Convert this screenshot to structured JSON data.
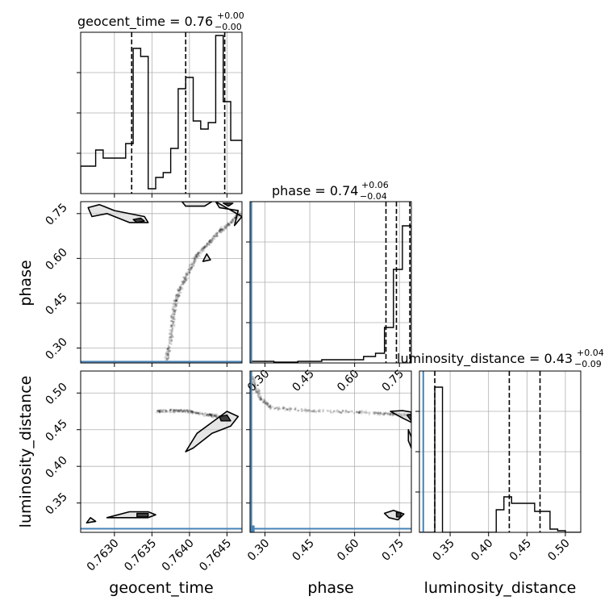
{
  "chart_data": [
    {
      "panel": "geocent_time-hist",
      "type": "histogram",
      "title": "geocent_time = 0.76",
      "title_sup": "+0.00",
      "title_sub": "−0.00",
      "xlim": [
        0.76255,
        0.7647
      ],
      "ylim": [
        0,
        1.0
      ],
      "bin_edges": [
        0.76255,
        0.76265,
        0.76275,
        0.76285,
        0.76295,
        0.76305,
        0.76315,
        0.76325,
        0.76335,
        0.76345,
        0.76355,
        0.76365,
        0.76375,
        0.76385,
        0.76395,
        0.76405,
        0.76415,
        0.76425,
        0.76435,
        0.76445,
        0.76455,
        0.7647
      ],
      "counts": [
        0.17,
        0.17,
        0.27,
        0.22,
        0.22,
        0.22,
        0.31,
        0.9,
        0.85,
        0.03,
        0.1,
        0.13,
        0.28,
        0.65,
        0.72,
        0.45,
        0.4,
        0.44,
        0.98,
        0.57,
        0.33
      ],
      "quantile_lines": [
        0.76323,
        0.76395,
        0.76447
      ],
      "yticks": [
        0.25,
        0.5,
        0.75
      ],
      "grid": true
    },
    {
      "panel": "phase-hist",
      "type": "histogram",
      "title": "phase = 0.74",
      "title_sup": "+0.06",
      "title_sub": "−0.04",
      "xlim": [
        0.25,
        0.79
      ],
      "ylim": [
        0,
        1.0
      ],
      "bin_edges": [
        0.25,
        0.33,
        0.41,
        0.49,
        0.57,
        0.63,
        0.67,
        0.7,
        0.73,
        0.76,
        0.79
      ],
      "counts": [
        0.01,
        0.005,
        0.01,
        0.02,
        0.02,
        0.04,
        0.06,
        0.22,
        0.58,
        0.85
      ],
      "quantile_lines": [
        0.705,
        0.74,
        0.785
      ],
      "truth": 0.2544,
      "xticks": [
        0.3,
        0.45,
        0.6,
        0.75
      ],
      "yticks": [
        0.25,
        0.5,
        0.75
      ],
      "xlabel": "phase",
      "grid": true
    },
    {
      "panel": "luminosity_distance-hist",
      "type": "histogram",
      "title": "luminosity_distance = 0.43",
      "title_sup": "+0.04",
      "title_sub": "−0.09",
      "xlim": [
        0.31,
        0.52
      ],
      "ylim": [
        0,
        1.0
      ],
      "bin_edges": [
        0.31,
        0.32,
        0.33,
        0.34,
        0.35,
        0.36,
        0.37,
        0.38,
        0.39,
        0.4,
        0.41,
        0.42,
        0.43,
        0.44,
        0.45,
        0.46,
        0.47,
        0.48,
        0.49,
        0.5,
        0.52
      ],
      "counts": [
        0.0,
        0.0,
        0.9,
        0.0,
        0.0,
        0.0,
        0.0,
        0.0,
        0.0,
        0.0,
        0.14,
        0.22,
        0.18,
        0.18,
        0.18,
        0.13,
        0.13,
        0.02,
        0.01,
        0.0
      ],
      "quantile_lines": [
        0.33,
        0.427,
        0.467
      ],
      "truth": 0.315,
      "xticks": [
        0.35,
        0.4,
        0.45,
        0.5
      ],
      "yticks": [
        0.25,
        0.5,
        0.75
      ],
      "xlabel": "luminosity_distance",
      "grid": true
    },
    {
      "panel": "geocent_time-phase",
      "type": "scatter",
      "xlim": [
        0.76255,
        0.7647
      ],
      "ylim": [
        0.25,
        0.79
      ],
      "ylabel": "phase",
      "yticks": [
        0.3,
        0.45,
        0.6,
        0.75
      ],
      "truth_y": 0.2544,
      "grid": true,
      "scatter_band": [
        [
          0.7637,
          0.26
        ],
        [
          0.76375,
          0.33
        ],
        [
          0.76378,
          0.4
        ],
        [
          0.76382,
          0.46
        ],
        [
          0.7639,
          0.51
        ],
        [
          0.764,
          0.56
        ],
        [
          0.7641,
          0.61
        ],
        [
          0.76425,
          0.65
        ],
        [
          0.7644,
          0.69
        ],
        [
          0.76455,
          0.72
        ],
        [
          0.76468,
          0.75
        ]
      ],
      "contours": [
        {
          "level": "outer",
          "points": [
            [
              0.76265,
              0.77
            ],
            [
              0.7628,
              0.78
            ],
            [
              0.763,
              0.76
            ],
            [
              0.7634,
              0.74
            ],
            [
              0.76345,
              0.72
            ],
            [
              0.7632,
              0.72
            ],
            [
              0.7629,
              0.75
            ],
            [
              0.7627,
              0.74
            ]
          ]
        },
        {
          "level": "inner",
          "points": [
            [
              0.76325,
              0.73
            ],
            [
              0.76335,
              0.735
            ],
            [
              0.7634,
              0.725
            ],
            [
              0.7633,
              0.72
            ]
          ]
        },
        {
          "level": "outer",
          "points": [
            [
              0.7639,
              0.79
            ],
            [
              0.76395,
              0.775
            ],
            [
              0.7642,
              0.775
            ],
            [
              0.7643,
              0.79
            ]
          ]
        },
        {
          "level": "outer",
          "points": [
            [
              0.76435,
              0.79
            ],
            [
              0.7644,
              0.77
            ],
            [
              0.76465,
              0.76
            ],
            [
              0.7646,
              0.71
            ],
            [
              0.7647,
              0.74
            ]
          ]
        },
        {
          "level": "inner",
          "points": [
            [
              0.76445,
              0.785
            ],
            [
              0.76452,
              0.775
            ],
            [
              0.76458,
              0.785
            ]
          ]
        },
        {
          "level": "outer",
          "points": [
            [
              0.76418,
              0.59
            ],
            [
              0.76423,
              0.615
            ],
            [
              0.76428,
              0.595
            ]
          ]
        }
      ]
    },
    {
      "panel": "geocent_time-luminosity_distance",
      "type": "scatter",
      "xlim": [
        0.76255,
        0.7647
      ],
      "ylim": [
        0.31,
        0.53
      ],
      "xlabel": "geocent_time",
      "ylabel": "luminosity_distance",
      "xticks": [
        0.763,
        0.7635,
        0.764,
        0.7645
      ],
      "yticks": [
        0.35,
        0.4,
        0.45,
        0.5
      ],
      "truth_y": 0.315,
      "grid": true,
      "scatter_band": [
        [
          0.76355,
          0.475
        ],
        [
          0.7638,
          0.476
        ],
        [
          0.764,
          0.475
        ],
        [
          0.76425,
          0.47
        ],
        [
          0.7644,
          0.468
        ]
      ],
      "contours": [
        {
          "level": "outer",
          "points": [
            [
              0.7629,
              0.33
            ],
            [
              0.7632,
              0.338
            ],
            [
              0.76345,
              0.338
            ],
            [
              0.76355,
              0.334
            ],
            [
              0.76345,
              0.33
            ],
            [
              0.7631,
              0.33
            ]
          ]
        },
        {
          "level": "inner",
          "points": [
            [
              0.7633,
              0.336
            ],
            [
              0.76345,
              0.336
            ],
            [
              0.76345,
              0.331
            ],
            [
              0.7633,
              0.331
            ]
          ]
        },
        {
          "level": "outer",
          "points": [
            [
              0.76263,
              0.323
            ],
            [
              0.76268,
              0.33
            ],
            [
              0.76275,
              0.325
            ]
          ]
        },
        {
          "level": "outer",
          "points": [
            [
              0.76395,
              0.42
            ],
            [
              0.7641,
              0.445
            ],
            [
              0.7643,
              0.46
            ],
            [
              0.7645,
              0.475
            ],
            [
              0.76465,
              0.468
            ],
            [
              0.76455,
              0.455
            ],
            [
              0.7643,
              0.445
            ],
            [
              0.76405,
              0.425
            ]
          ]
        },
        {
          "level": "inner",
          "points": [
            [
              0.7644,
              0.468
            ],
            [
              0.7645,
              0.47
            ],
            [
              0.76455,
              0.462
            ],
            [
              0.76442,
              0.462
            ]
          ]
        }
      ]
    },
    {
      "panel": "phase-luminosity_distance",
      "type": "scatter",
      "xlim": [
        0.25,
        0.79
      ],
      "ylim": [
        0.31,
        0.53
      ],
      "xlabel": "phase",
      "xticks": [
        0.3,
        0.45,
        0.6,
        0.75
      ],
      "truth_x": 0.2544,
      "truth_y": 0.315,
      "grid": true,
      "scatter_band": [
        [
          0.26,
          0.52
        ],
        [
          0.28,
          0.495
        ],
        [
          0.32,
          0.48
        ],
        [
          0.45,
          0.476
        ],
        [
          0.6,
          0.474
        ],
        [
          0.7,
          0.472
        ],
        [
          0.78,
          0.47
        ]
      ],
      "contours": [
        {
          "level": "outer",
          "points": [
            [
              0.72,
              0.475
            ],
            [
              0.76,
              0.476
            ],
            [
              0.79,
              0.474
            ],
            [
              0.79,
              0.46
            ],
            [
              0.76,
              0.466
            ]
          ]
        },
        {
          "level": "inner",
          "points": [
            [
              0.775,
              0.47
            ],
            [
              0.79,
              0.471
            ],
            [
              0.79,
              0.462
            ]
          ]
        },
        {
          "level": "outer",
          "points": [
            [
              0.78,
              0.45
            ],
            [
              0.79,
              0.44
            ],
            [
              0.79,
              0.425
            ],
            [
              0.78,
              0.435
            ]
          ]
        },
        {
          "level": "outer",
          "points": [
            [
              0.7,
              0.336
            ],
            [
              0.73,
              0.34
            ],
            [
              0.765,
              0.335
            ],
            [
              0.745,
              0.327
            ],
            [
              0.715,
              0.33
            ]
          ]
        },
        {
          "level": "inner",
          "points": [
            [
              0.74,
              0.337
            ],
            [
              0.755,
              0.337
            ],
            [
              0.755,
              0.331
            ],
            [
              0.74,
              0.331
            ]
          ]
        }
      ]
    }
  ]
}
